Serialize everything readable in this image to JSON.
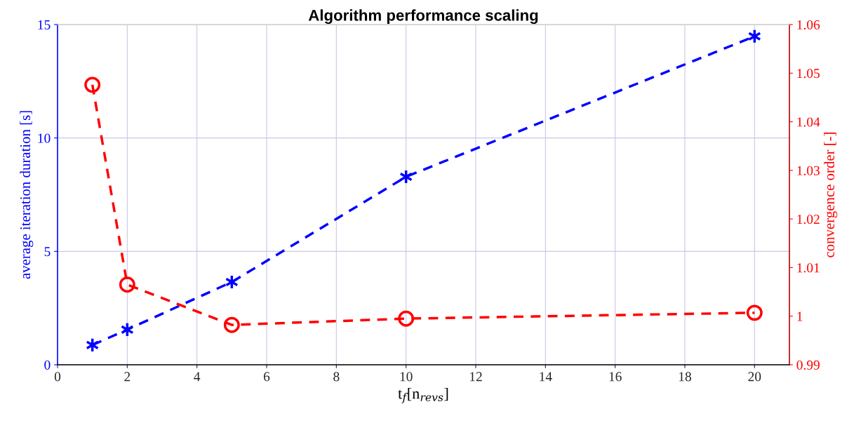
{
  "chart_data": {
    "type": "line",
    "title": "Algorithm performance scaling",
    "xlabel": "t$_{f}$[n$_{revs}$]",
    "ylabel": "average iteration duration [s]",
    "y2label": "convergence order [-]",
    "x": [
      1,
      2,
      5,
      10,
      20
    ],
    "series": [
      {
        "color": "#0000ff",
        "values": [
          0.87,
          1.55,
          3.65,
          8.29,
          14.48
        ],
        "marker": "cross",
        "line_style": "dashed"
      },
      {
        "color": "#ff0000",
        "values": [
          1.0476,
          1.0065,
          0.9982,
          0.9995,
          1.0007
        ],
        "marker": "circle",
        "line_style": "dashed",
        "axis": "y2"
      }
    ],
    "xlim": [
      0,
      21
    ],
    "xticks": [
      0,
      2,
      4,
      6,
      8,
      10,
      12,
      14,
      16,
      18,
      20
    ],
    "ylim": [
      0,
      15
    ],
    "yticks": [
      0,
      5,
      10,
      15
    ],
    "y2lim": [
      0.99,
      1.06
    ],
    "y2ticks": [
      0.99,
      1,
      1.01,
      1.02,
      1.03,
      1.04,
      1.05,
      1.06
    ],
    "grid": true,
    "legend": false
  }
}
